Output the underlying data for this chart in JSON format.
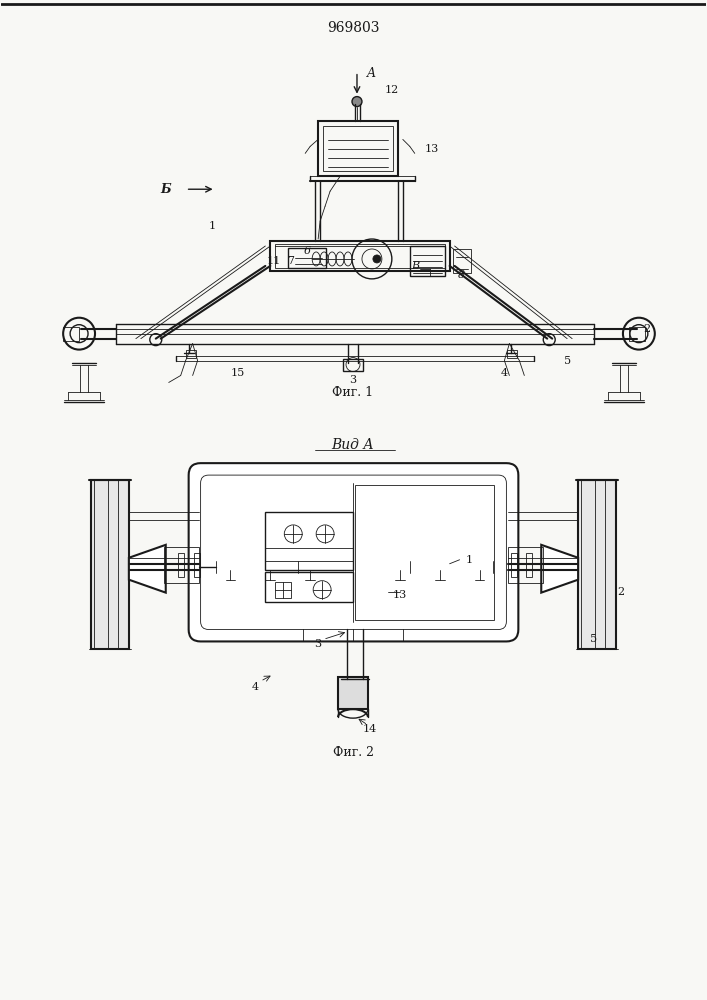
{
  "title": "969803",
  "fig1_label": "Фиг. 1",
  "fig2_label": "Фиг. 2",
  "vid_a_label": "Вид A",
  "bg_color": "#f8f8f5",
  "line_color": "#1a1a1a",
  "lw": 1.0,
  "lw_thin": 0.6,
  "lw_thick": 1.5,
  "lw_bold": 2.0
}
